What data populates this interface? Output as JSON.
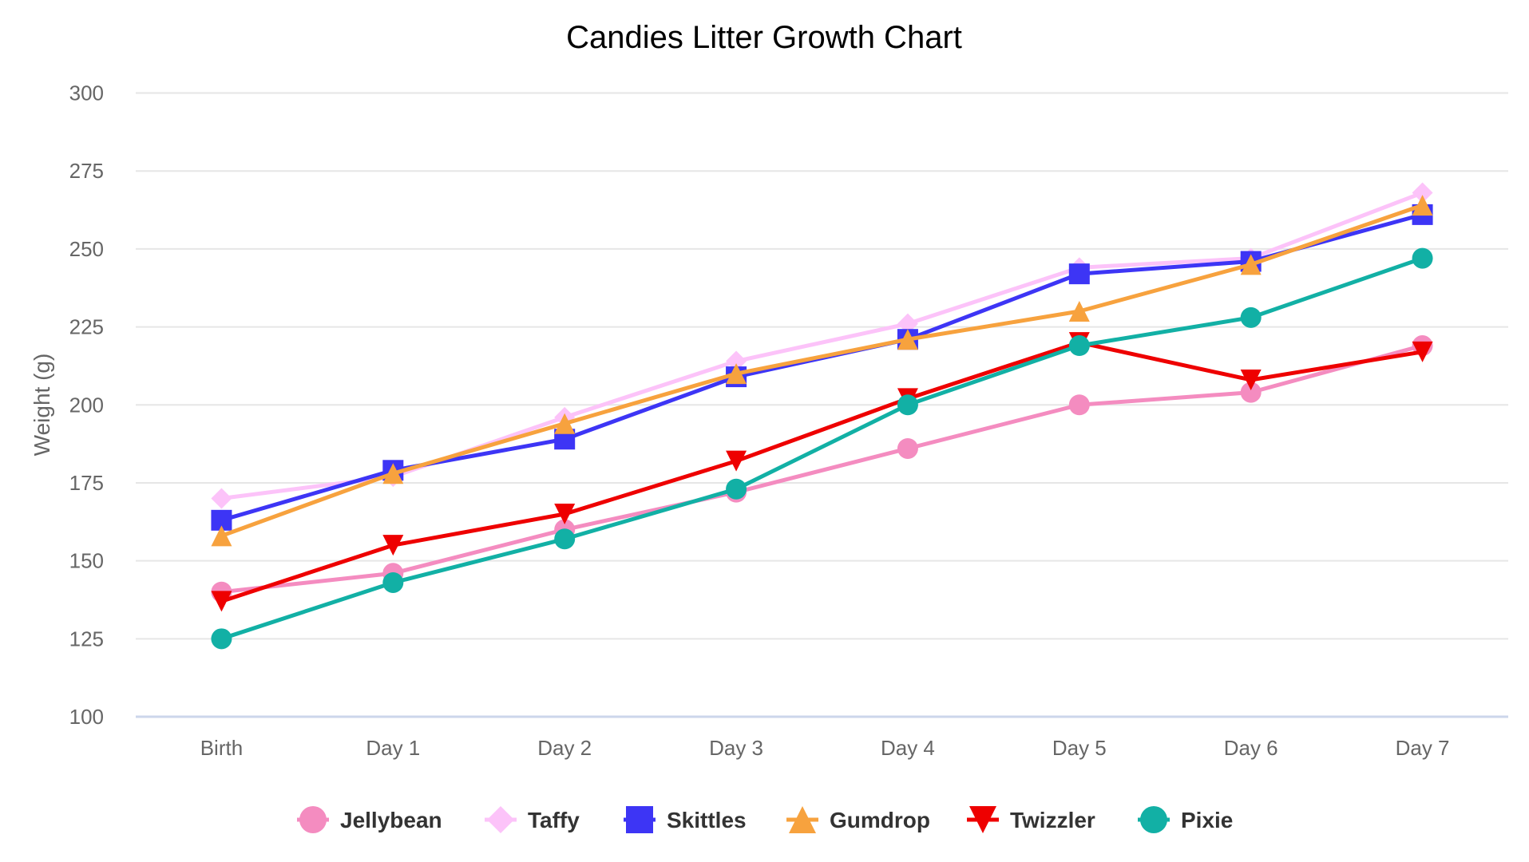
{
  "chart_data": {
    "type": "line",
    "title": "Candies Litter Growth Chart",
    "xlabel": "",
    "ylabel": "Weight (g)",
    "ylim": [
      100,
      300
    ],
    "yticks": [
      100,
      125,
      150,
      175,
      200,
      225,
      250,
      275,
      300
    ],
    "categories": [
      "Birth",
      "Day 1",
      "Day 2",
      "Day 3",
      "Day 4",
      "Day 5",
      "Day 6",
      "Day 7"
    ],
    "grid": true,
    "legend_position": "bottom-center",
    "series": [
      {
        "name": "Jellybean",
        "color": "#f48cc0",
        "marker": "circle",
        "values": [
          140,
          146,
          160,
          172,
          186,
          200,
          204,
          219
        ]
      },
      {
        "name": "Taffy",
        "color": "#fcc3f9",
        "marker": "diamond",
        "values": [
          170,
          177,
          196,
          214,
          226,
          244,
          247,
          268
        ]
      },
      {
        "name": "Skittles",
        "color": "#3d35f5",
        "marker": "square",
        "values": [
          163,
          179,
          189,
          209,
          221,
          242,
          246,
          261
        ]
      },
      {
        "name": "Gumdrop",
        "color": "#f7a23e",
        "marker": "triangle",
        "values": [
          158,
          178,
          194,
          210,
          221,
          230,
          245,
          264
        ]
      },
      {
        "name": "Twizzler",
        "color": "#ee0000",
        "marker": "triangle-down",
        "values": [
          137,
          155,
          165,
          182,
          202,
          220,
          208,
          217
        ]
      },
      {
        "name": "Pixie",
        "color": "#12b0a5",
        "marker": "circle",
        "values": [
          125,
          143,
          157,
          173,
          200,
          219,
          228,
          247
        ]
      }
    ]
  }
}
